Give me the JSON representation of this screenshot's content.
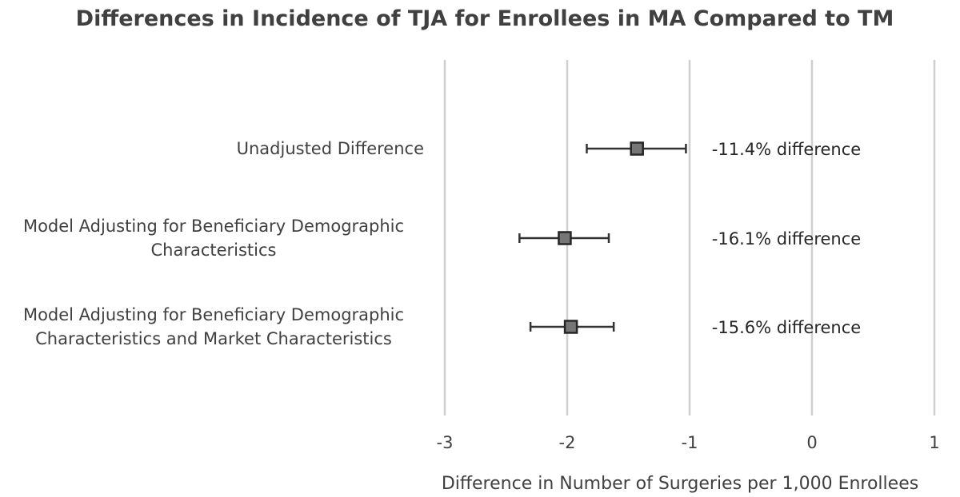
{
  "chart_data": {
    "type": "scatter",
    "title": "Differences in Incidence of TJA for Enrollees in MA Compared to TM",
    "xlabel": "Difference in Number of Surgeries per 1,000 Enrollees",
    "ylabel": "",
    "xlim": [
      -3,
      1
    ],
    "xticks": [
      "-3",
      "-2",
      "-1",
      "0",
      "1"
    ],
    "grid": "vertical",
    "legend": "none",
    "marker_color": "#767676",
    "categories": [
      {
        "label_lines": [
          "Unadjusted Difference"
        ],
        "estimate": -1.43,
        "ci_low": -1.84,
        "ci_high": -1.03,
        "annotation": "-11.4% difference"
      },
      {
        "label_lines": [
          "Model Adjusting for Beneficiary Demographic",
          "Characteristics"
        ],
        "estimate": -2.02,
        "ci_low": -2.39,
        "ci_high": -1.66,
        "annotation": "-16.1% difference"
      },
      {
        "label_lines": [
          "Model Adjusting for Beneficiary Demographic",
          "Characteristics and Market Characteristics"
        ],
        "estimate": -1.97,
        "ci_low": -2.3,
        "ci_high": -1.62,
        "annotation": "-15.6% difference"
      }
    ]
  }
}
